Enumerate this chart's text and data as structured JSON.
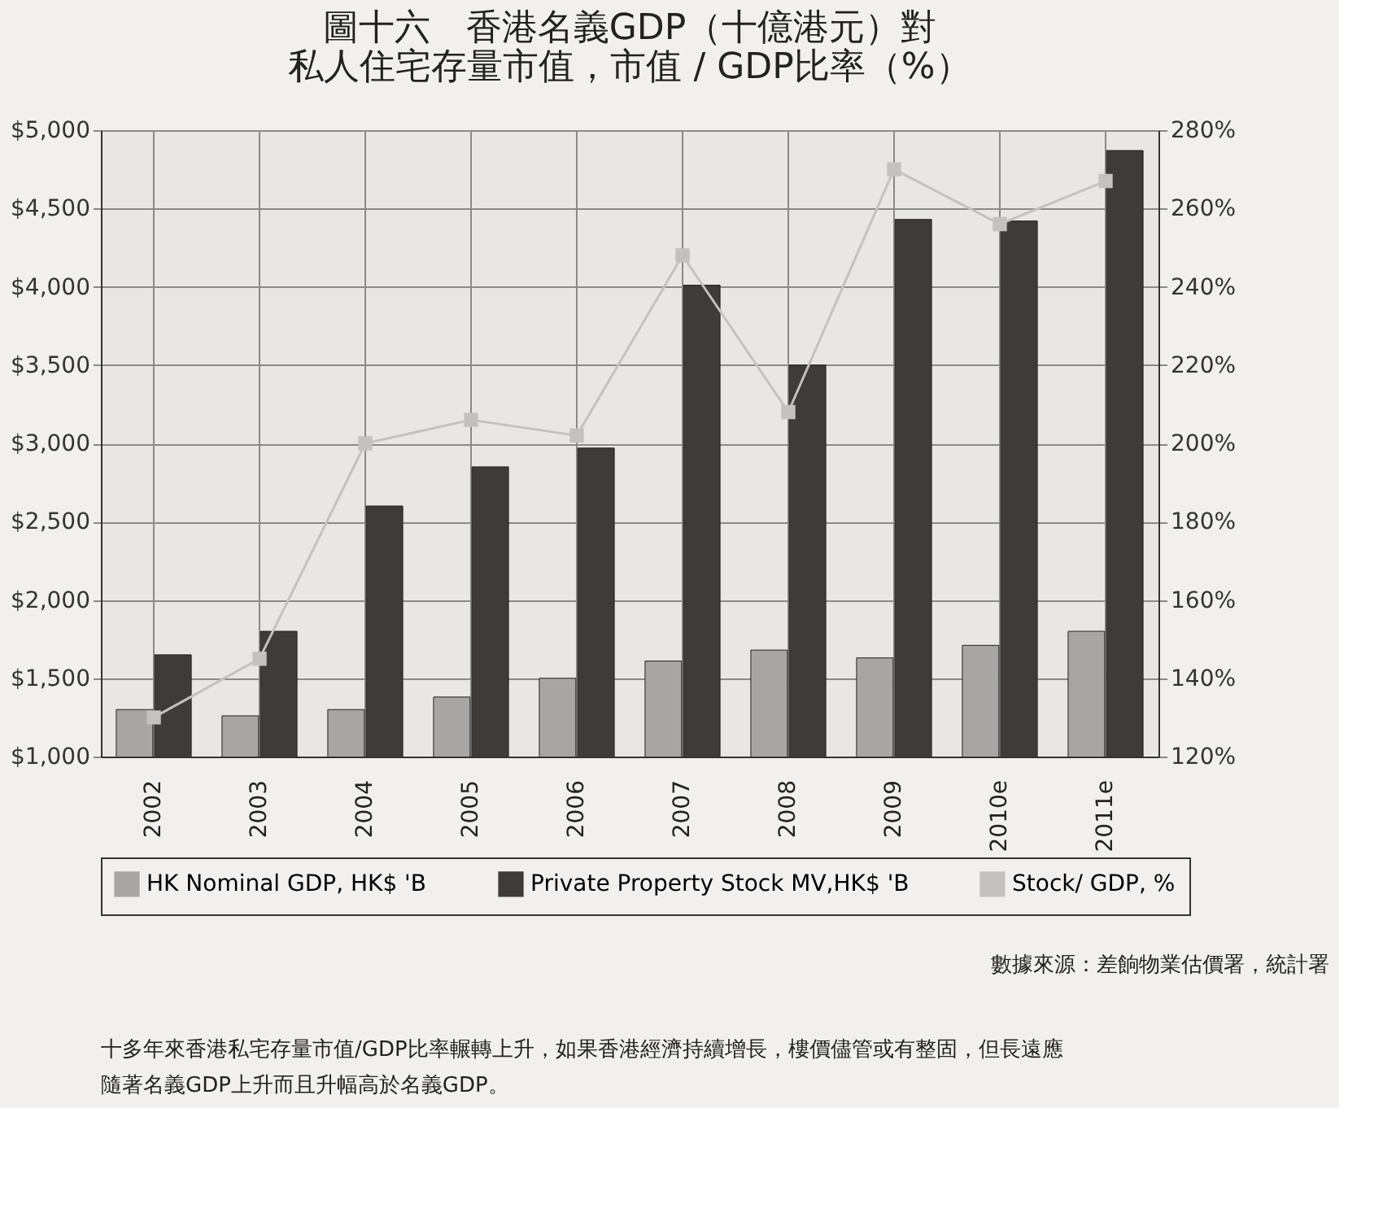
{
  "chart_data": {
    "type": "bar",
    "title": [
      "圖十六　香港名義GDP（十億港元）對",
      "私人住宅存量市值，市值 / GDP比率（%）"
    ],
    "categories": [
      "2002",
      "2003",
      "2004",
      "2005",
      "2006",
      "2007",
      "2008",
      "2009",
      "2010e",
      "2011e"
    ],
    "series": [
      {
        "name": "HK Nominal GDP, HK$ 'B",
        "color": "#a8a6a4",
        "values": [
          1300,
          1260,
          1300,
          1380,
          1500,
          1610,
          1680,
          1630,
          1710,
          1800
        ]
      },
      {
        "name": "Private Property Stock MV,HK$ 'B",
        "color": "#3f3b38",
        "values": [
          1650,
          1800,
          2600,
          2850,
          2970,
          4010,
          3500,
          4430,
          4420,
          4870
        ]
      },
      {
        "name": "Stock/ GDP, %",
        "color": "#c4c2c0",
        "type": "line",
        "axis": "y2",
        "marker": "square",
        "values": [
          130,
          145,
          200,
          206,
          202,
          248,
          208,
          270,
          256,
          267
        ]
      }
    ],
    "ylim": [
      1000,
      5000
    ],
    "yticks": [
      {
        "value": 1000,
        "label": "$1,000"
      },
      {
        "value": 1500,
        "label": "$1,500"
      },
      {
        "value": 2000,
        "label": "$2,000"
      },
      {
        "value": 2500,
        "label": "$2,500"
      },
      {
        "value": 3000,
        "label": "$3,000"
      },
      {
        "value": 3500,
        "label": "$3,500"
      },
      {
        "value": 4000,
        "label": "$4,000"
      },
      {
        "value": 4500,
        "label": "$4,500"
      },
      {
        "value": 5000,
        "label": "$5,000"
      }
    ],
    "y2lim": [
      120,
      280
    ],
    "y2ticks": [
      {
        "value": 120,
        "label": "120%"
      },
      {
        "value": 140,
        "label": "140%"
      },
      {
        "value": 160,
        "label": "160%"
      },
      {
        "value": 180,
        "label": "180%"
      },
      {
        "value": 200,
        "label": "200%"
      },
      {
        "value": 220,
        "label": "220%"
      },
      {
        "value": 240,
        "label": "240%"
      },
      {
        "value": 260,
        "label": "260%"
      },
      {
        "value": 280,
        "label": "280%"
      }
    ],
    "grid": true,
    "legend": "bottom",
    "annotations": [
      "數據來源：差餉物業估價署，統計署",
      "十多年來香港私宅存量市值/GDP比率輾轉上升，如果香港經濟持續增長，樓價儘管或有整固，但長遠應",
      "隨著名義GDP上升而且升幅高於名義GDP。"
    ]
  }
}
